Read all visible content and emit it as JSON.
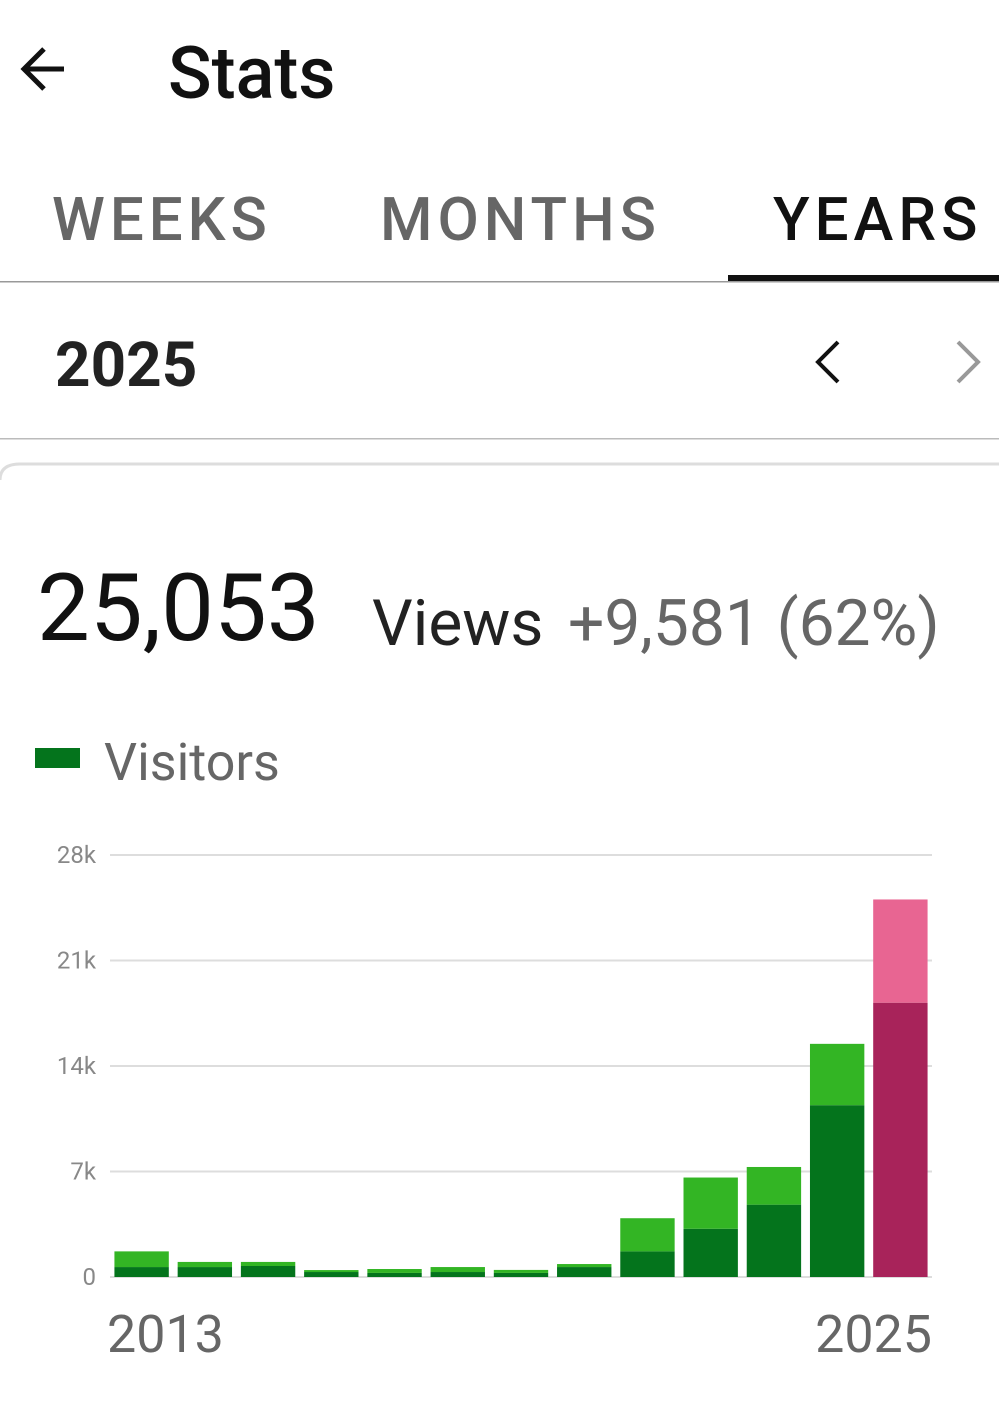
{
  "header": {
    "title": "Stats"
  },
  "tabs": [
    "WEEKS",
    "MONTHS",
    "YEARS"
  ],
  "period": "2025",
  "summary": {
    "total": "25,053",
    "unit": "Views",
    "change": "+9,581 (62%)"
  },
  "chart_data": {
    "type": "stacked-bar",
    "categories": [
      "2013",
      null,
      null,
      null,
      null,
      null,
      null,
      null,
      null,
      null,
      null,
      null,
      "2025"
    ],
    "series": [
      {
        "name": "Visitors",
        "color": "#04741c",
        "highlight_color": "#a8235a",
        "values": [
          660,
          660,
          730,
          330,
          270,
          330,
          270,
          660,
          1700,
          3200,
          4800,
          11400,
          18200
        ]
      },
      {
        "color": "#33b524",
        "highlight_color": "#e86592",
        "values": [
          1040,
          340,
          270,
          130,
          260,
          330,
          200,
          200,
          2200,
          3400,
          2500,
          4070,
          6850
        ]
      }
    ],
    "highlight_category": "2025",
    "ylim": [
      0,
      28000
    ],
    "yticks": [
      0,
      {
        "value": 7000,
        "label": "7k"
      },
      {
        "value": 14000,
        "label": "14k"
      },
      {
        "value": 21000,
        "label": "21k"
      },
      {
        "value": 28000,
        "label": "28k"
      }
    ],
    "grid": true
  }
}
